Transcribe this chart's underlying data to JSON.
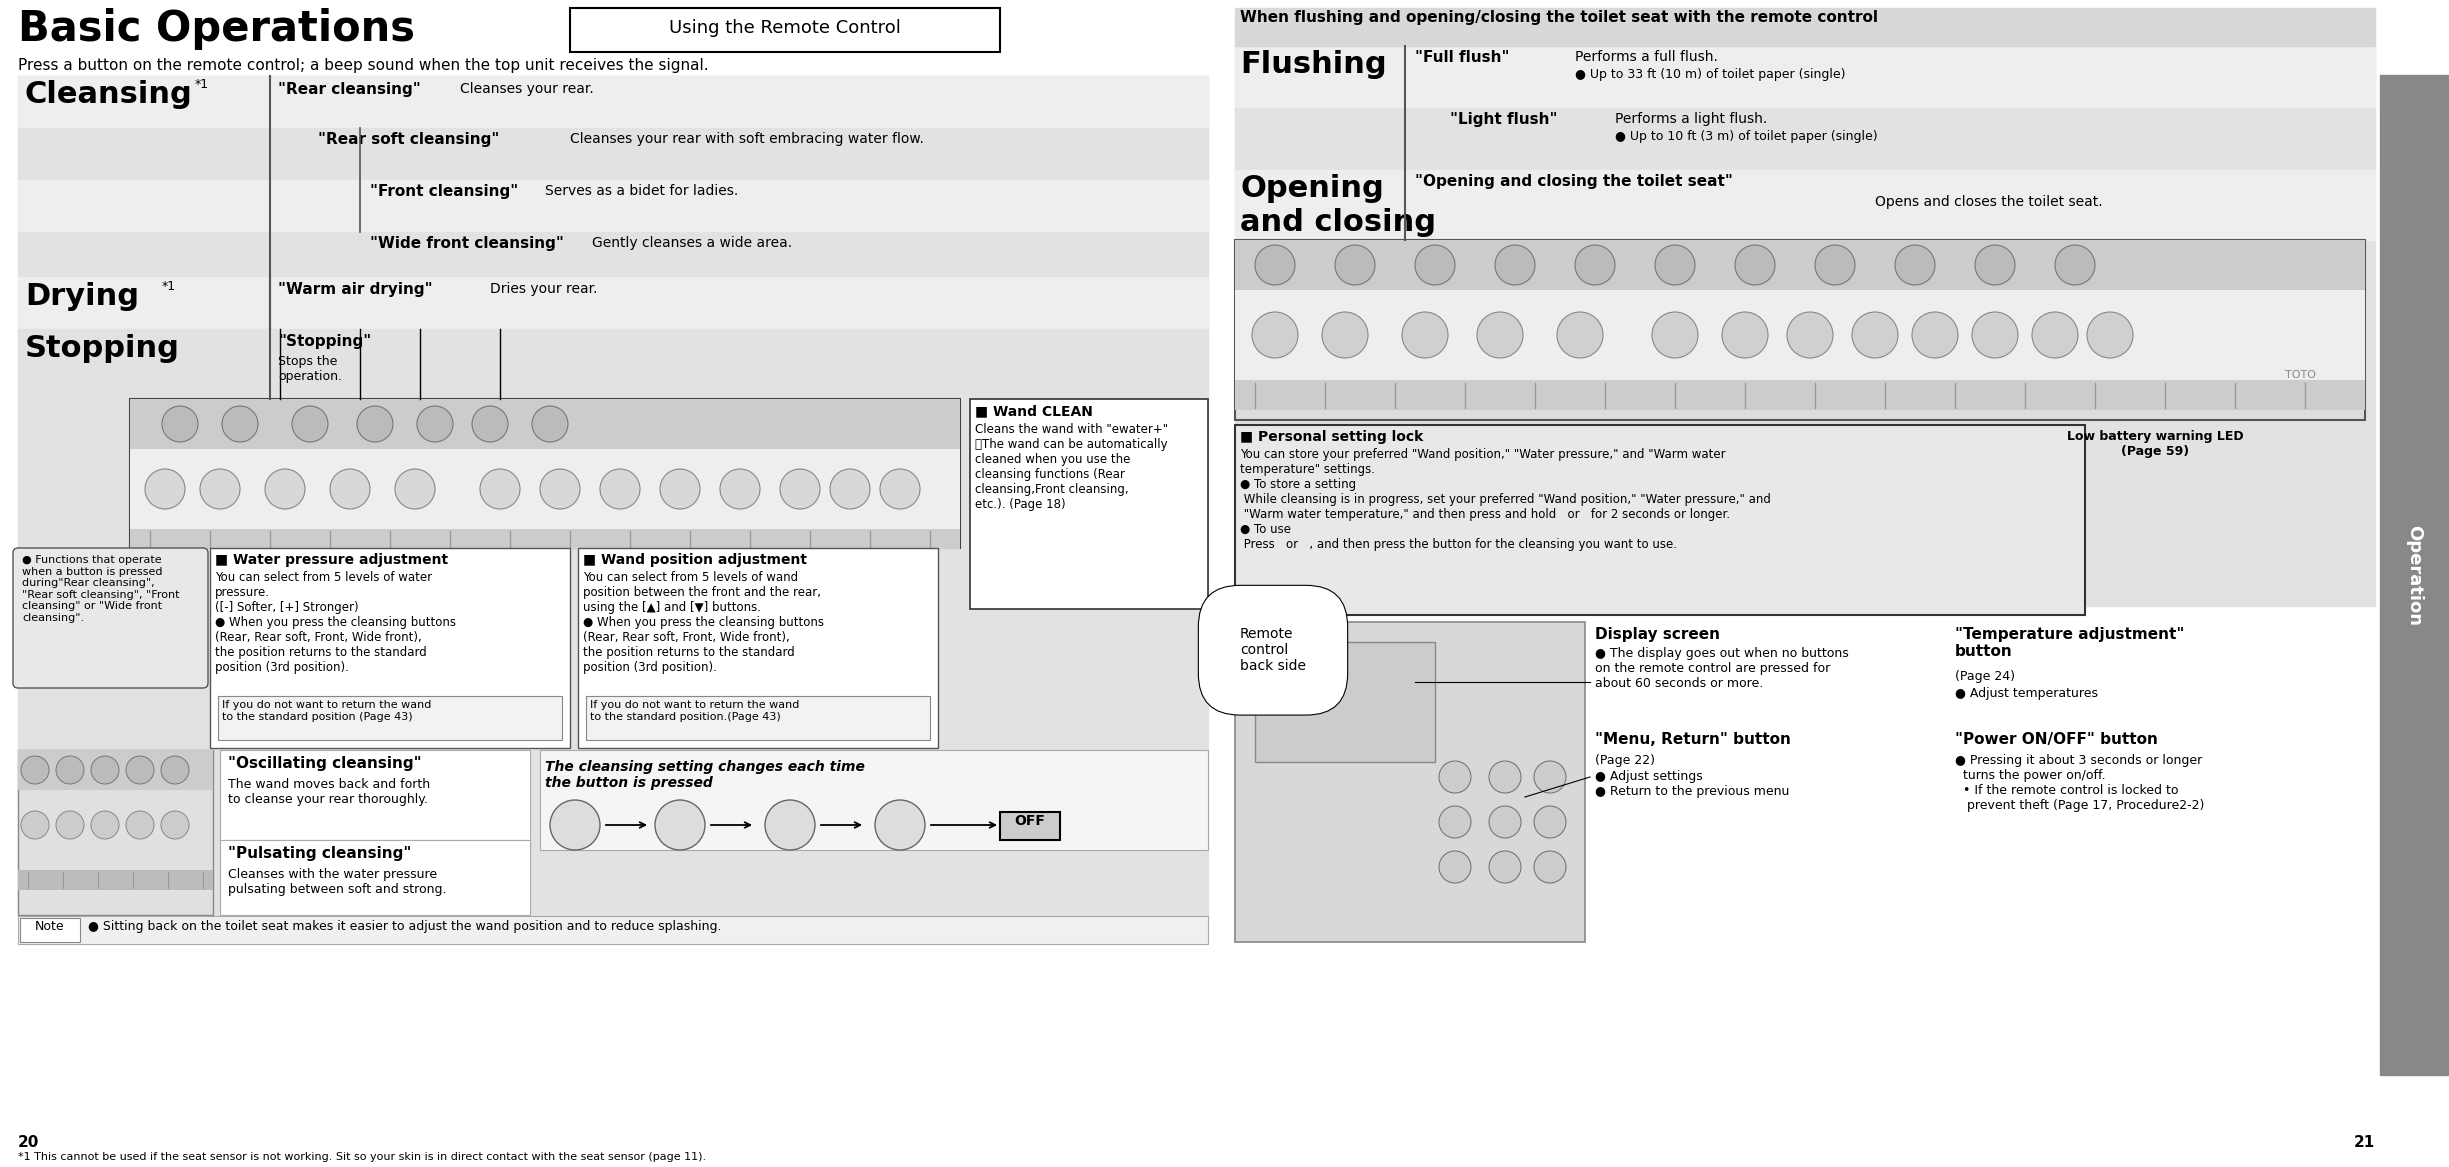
{
  "bg_color": "#ffffff",
  "gray_bg": "#e0e0e0",
  "gray_bg2": "#d8d8d8",
  "sidebar_bg": "#777777",
  "page_num_left": "20",
  "page_num_right": "21",
  "title_left": "Basic Operations",
  "title_box": "Using the Remote Control",
  "subtitle_left": "Press a button on the remote control; a beep sound when the top unit receives the signal.",
  "subtitle_right": "When flushing and opening/closing the toilet seat with the remote control",
  "cleansing_label": "Cleansing",
  "cleansing_sup": "*1",
  "drying_label": "Drying",
  "drying_sup": "*1",
  "stopping_label": "Stopping",
  "flushing_label": "Flushing",
  "opening_label": "Opening\nand closing",
  "rear_label": "\"Rear cleansing\"",
  "rear_desc": "Cleanses your rear.",
  "rear_soft_label": "\"Rear soft cleansing\"",
  "rear_soft_desc": "Cleanses your rear with soft embracing water flow.",
  "front_label": "\"Front cleansing\"",
  "front_desc": "Serves as a bidet for ladies.",
  "wide_label": "\"Wide front cleansing\"",
  "wide_desc": "Gently cleanses a wide area.",
  "warm_air_label": "\"Warm air drying\"",
  "warm_air_desc": "Dries your rear.",
  "stopping_qt": "\"Stopping\"",
  "stopping_desc": "Stops the\noperation.",
  "full_flush_label": "\"Full flush\"",
  "full_flush_desc": "Performs a full flush.",
  "full_flush_sub": "● Up to 33 ft (10 m) of toilet paper (single)",
  "light_flush_label": "\"Light flush\"",
  "light_flush_desc": "Performs a light flush.",
  "light_flush_sub": "● Up to 10 ft (3 m) of toilet paper (single)",
  "opening_qt": "\"Opening and closing the toilet seat\"",
  "opening_desc": "Opens and closes the toilet seat.",
  "wand_clean_title": "■ Wand CLEAN",
  "wand_clean_body": "Cleans the wand with \"ewater+\"\n・The wand can be automatically\ncleaned when you use the\ncleansing functions (Rear\ncleansing,Front cleansing,\netc.). (Page 18)",
  "water_pressure_title": "■ Water pressure adjustment",
  "water_pressure_body": "You can select from 5 levels of water\npressure.\n([-] Softer, [+] Stronger)\n● When you press the cleansing buttons\n(Rear, Rear soft, Front, Wide front),\nthe position returns to the standard\nposition (3rd position).",
  "water_pressure_note": "If you do not want to return the wand\nto the standard position (Page 43)",
  "wand_pos_title": "■ Wand position adjustment",
  "wand_pos_body": "You can select from 5 levels of wand\nposition between the front and the rear,\nusing the [▲] and [▼] buttons.\n● When you press the cleansing buttons\n(Rear, Rear soft, Front, Wide front),\nthe position returns to the standard\nposition (3rd position).",
  "wand_pos_note": "If you do not want to return the wand\nto the standard position.(Page 43)",
  "functions_text": "● Functions that operate\nwhen a button is pressed\nduring\"Rear cleansing\",\n\"Rear soft cleansing\", \"Front\ncleansing\" or \"Wide front\ncleansing\".",
  "osc_label": "\"Oscillating cleansing\"",
  "osc_desc": "The wand moves back and forth\nto cleanse your rear thoroughly.",
  "puls_label": "\"Pulsating cleansing\"",
  "puls_desc": "Cleanses with the water pressure\npulsating between soft and strong.",
  "cleansing_setting": "The cleansing setting changes each time\nthe button is pressed",
  "note_text": "Note    ● Sitting back on the toilet seat makes it easier to adjust the wand position and to reduce splashing.",
  "personal_title": "■ Personal setting lock",
  "personal_body": "You can store your preferred \"Wand position,\" \"Water pressure,\" and \"Warm water\ntemperature\" settings.\n● To store a setting\n While cleansing is in progress, set your preferred \"Wand position,\" \"Water pressure,\" and\n \"Warm water temperature,\" and then press and hold   or   for 2 seconds or longer.\n● To use\n Press   or   , and then press the button for the cleansing you want to use.",
  "low_battery": "Low battery warning LED\n(Page 59)",
  "display_screen_label": "Display screen",
  "display_screen_body": "● The display goes out when no buttons\non the remote control are pressed for\nabout 60 seconds or more.",
  "menu_return_label": "\"Menu, Return\" button",
  "menu_return_ref": "(Page 22)",
  "menu_return_body": "● Adjust settings\n● Return to the previous menu",
  "temp_adj_label": "\"Temperature adjustment\"\nbutton",
  "temp_adj_ref": "(Page 24)",
  "temp_adj_body": "● Adjust temperatures",
  "power_label": "\"Power ON/OFF\" button",
  "power_body": "● Pressing it about 3 seconds or longer\n  turns the power on/off.\n  • If the remote control is locked to\n   prevent theft (Page 17, Procedure2-2)",
  "remote_back": "Remote\ncontrol\nback side",
  "footnote": "*1 This cannot be used if the seat sensor is not working. Sit so your skin is in direct contact with the seat sensor (page 11).",
  "sidebar_text": "Operation",
  "off_text": "OFF"
}
